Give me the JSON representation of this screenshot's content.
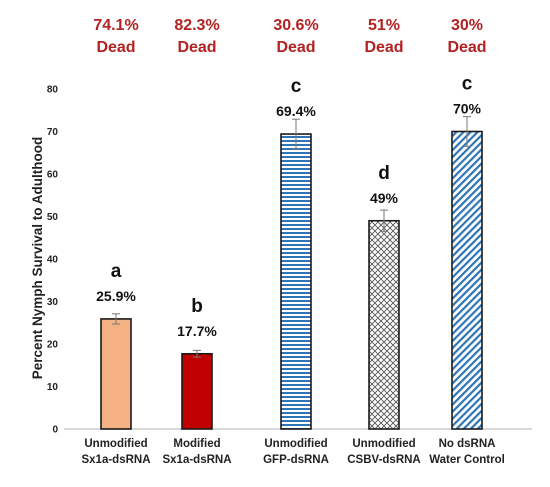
{
  "chart_data": {
    "type": "bar",
    "ylabel": "Percent  Nymph Survival to Adulthood",
    "xlabel": "",
    "ylim": [
      0,
      80
    ],
    "yticks": [
      0,
      10,
      20,
      30,
      40,
      50,
      60,
      70,
      80
    ],
    "grid": false,
    "categories": [
      [
        "Unmodified",
        "Sx1a-dsRNA"
      ],
      [
        "Modified",
        "Sx1a-dsRNA"
      ],
      [
        "Unmodified",
        "GFP-dsRNA"
      ],
      [
        "Unmodified",
        "CSBV-dsRNA"
      ],
      [
        "No dsRNA",
        "Water Control"
      ]
    ],
    "values": [
      25.9,
      17.7,
      69.4,
      49,
      70
    ],
    "errors": [
      1.2,
      0.8,
      3.5,
      2.5,
      3.5
    ],
    "value_labels": [
      "25.9%",
      "17.7%",
      "69.4%",
      "49%",
      "70%"
    ],
    "significance_letters": [
      "a",
      "b",
      "c",
      "d",
      "c"
    ],
    "dead_labels": [
      [
        "74.1%",
        "Dead"
      ],
      [
        "82.3%",
        "Dead"
      ],
      [
        "30.6%",
        "Dead"
      ],
      [
        "51%",
        "Dead"
      ],
      [
        "30%",
        "Dead"
      ]
    ],
    "bar_styles": [
      {
        "fill": "#f4b183",
        "pattern": "solid"
      },
      {
        "fill": "#c00000",
        "pattern": "solid"
      },
      {
        "fill": "#bdd7ee",
        "pattern": "horizontal-lines"
      },
      {
        "fill": "#ffffff",
        "pattern": "diamond-hatch"
      },
      {
        "fill": "#bdd7ee",
        "pattern": "diagonal-lines"
      }
    ],
    "colors": {
      "dead_text": "#b22222",
      "bar_outline": "#1a1a1a",
      "stripe": "#2e75b6",
      "hatch": "#555555"
    }
  }
}
